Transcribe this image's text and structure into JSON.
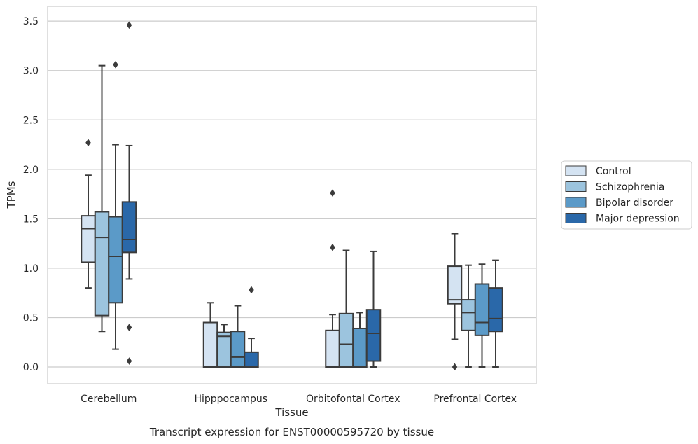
{
  "chart_data": {
    "type": "box",
    "title": "",
    "caption": "Transcript expression for ENST00000595720 by tissue",
    "xlabel": "Tissue",
    "ylabel": "TPMs",
    "ylim": [
      -0.17,
      3.65
    ],
    "yticks": [
      0.0,
      0.5,
      1.0,
      1.5,
      2.0,
      2.5,
      3.0,
      3.5
    ],
    "ytick_labels": [
      "0.0",
      "0.5",
      "1.0",
      "1.5",
      "2.0",
      "2.5",
      "3.0",
      "3.5"
    ],
    "grid": "horizontal",
    "legend_position": "right",
    "categories": [
      "Cerebellum",
      "Hipppocampus",
      "Orbitofontal Cortex",
      "Prefrontal Cortex"
    ],
    "series": [
      {
        "name": "Control",
        "color": "#d4e3f2",
        "boxes": [
          {
            "whislo": 0.8,
            "q1": 1.06,
            "med": 1.4,
            "q3": 1.53,
            "whishi": 1.94,
            "fliers": [
              2.27
            ]
          },
          {
            "whislo": 0.0,
            "q1": 0.0,
            "med": 0.0,
            "q3": 0.45,
            "whishi": 0.65,
            "fliers": []
          },
          {
            "whislo": 0.0,
            "q1": 0.0,
            "med": 0.0,
            "q3": 0.37,
            "whishi": 0.53,
            "fliers": [
              1.21,
              1.76
            ]
          },
          {
            "whislo": 0.28,
            "q1": 0.64,
            "med": 0.68,
            "q3": 1.02,
            "whishi": 1.35,
            "fliers": [
              0.0
            ]
          }
        ]
      },
      {
        "name": "Schizophrenia",
        "color": "#9cc4de",
        "boxes": [
          {
            "whislo": 0.36,
            "q1": 0.52,
            "med": 1.31,
            "q3": 1.57,
            "whishi": 3.05,
            "fliers": []
          },
          {
            "whislo": 0.0,
            "q1": 0.0,
            "med": 0.31,
            "q3": 0.35,
            "whishi": 0.43,
            "fliers": []
          },
          {
            "whislo": 0.0,
            "q1": 0.0,
            "med": 0.23,
            "q3": 0.54,
            "whishi": 1.18,
            "fliers": []
          },
          {
            "whislo": 0.0,
            "q1": 0.37,
            "med": 0.55,
            "q3": 0.68,
            "whishi": 1.03,
            "fliers": []
          }
        ]
      },
      {
        "name": "Bipolar disorder",
        "color": "#5b9ac8",
        "boxes": [
          {
            "whislo": 0.18,
            "q1": 0.65,
            "med": 1.12,
            "q3": 1.52,
            "whishi": 2.25,
            "fliers": [
              3.06
            ]
          },
          {
            "whislo": 0.0,
            "q1": 0.0,
            "med": 0.1,
            "q3": 0.36,
            "whishi": 0.62,
            "fliers": []
          },
          {
            "whislo": 0.0,
            "q1": 0.0,
            "med": 0.0,
            "q3": 0.39,
            "whishi": 0.55,
            "fliers": []
          },
          {
            "whislo": 0.0,
            "q1": 0.32,
            "med": 0.45,
            "q3": 0.84,
            "whishi": 1.04,
            "fliers": []
          }
        ]
      },
      {
        "name": "Major depression",
        "color": "#2a68a9",
        "boxes": [
          {
            "whislo": 0.89,
            "q1": 1.16,
            "med": 1.29,
            "q3": 1.67,
            "whishi": 2.24,
            "fliers": [
              0.06,
              0.4,
              3.46
            ]
          },
          {
            "whislo": 0.0,
            "q1": 0.0,
            "med": 0.0,
            "q3": 0.15,
            "whishi": 0.29,
            "fliers": [
              0.78
            ]
          },
          {
            "whislo": 0.0,
            "q1": 0.06,
            "med": 0.34,
            "q3": 0.58,
            "whishi": 1.17,
            "fliers": []
          },
          {
            "whislo": 0.0,
            "q1": 0.36,
            "med": 0.49,
            "q3": 0.8,
            "whishi": 1.08,
            "fliers": []
          }
        ]
      }
    ]
  }
}
